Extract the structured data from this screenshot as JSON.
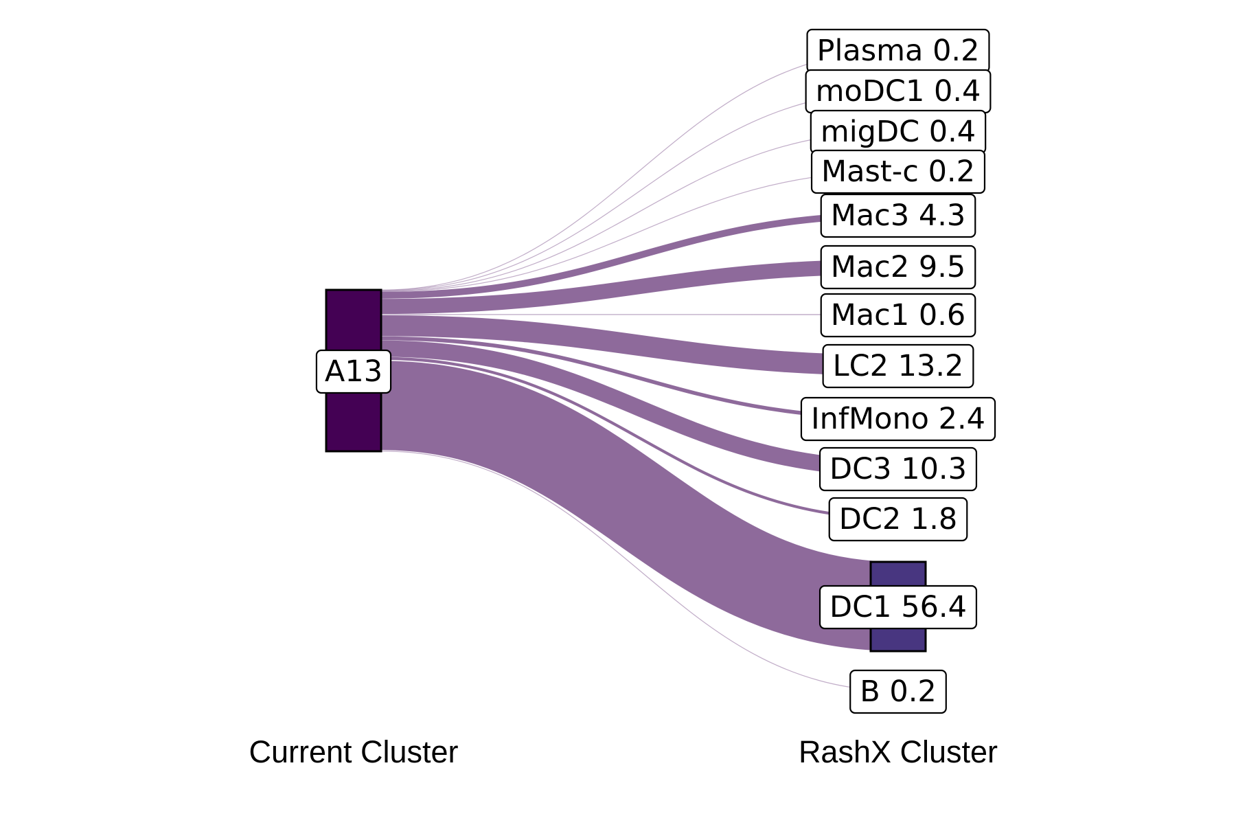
{
  "chart_data": {
    "type": "sankey",
    "axis_labels": {
      "left": "Current Cluster",
      "right": "RashX Cluster"
    },
    "source": {
      "label": "A13",
      "color": "#440154"
    },
    "flow_color": "#8e6a9b",
    "highlight_target_color": "#483680",
    "targets": [
      {
        "name": "Plasma",
        "value": 0.2,
        "label": "Plasma 0.2"
      },
      {
        "name": "moDC1",
        "value": 0.4,
        "label": "moDC1 0.4"
      },
      {
        "name": "migDC",
        "value": 0.4,
        "label": "migDC 0.4"
      },
      {
        "name": "Mast-c",
        "value": 0.2,
        "label": "Mast-c 0.2"
      },
      {
        "name": "Mac3",
        "value": 4.3,
        "label": "Mac3 4.3"
      },
      {
        "name": "Mac2",
        "value": 9.5,
        "label": "Mac2 9.5"
      },
      {
        "name": "Mac1",
        "value": 0.6,
        "label": "Mac1 0.6"
      },
      {
        "name": "LC2",
        "value": 13.2,
        "label": "LC2 13.2"
      },
      {
        "name": "InfMono",
        "value": 2.4,
        "label": "InfMono 2.4"
      },
      {
        "name": "DC3",
        "value": 10.3,
        "label": "DC3 10.3"
      },
      {
        "name": "DC2",
        "value": 1.8,
        "label": "DC2 1.8"
      },
      {
        "name": "DC1",
        "value": 56.4,
        "label": "DC1 56.4",
        "has_box": true
      },
      {
        "name": "B",
        "value": 0.2,
        "label": "B 0.2"
      }
    ]
  }
}
